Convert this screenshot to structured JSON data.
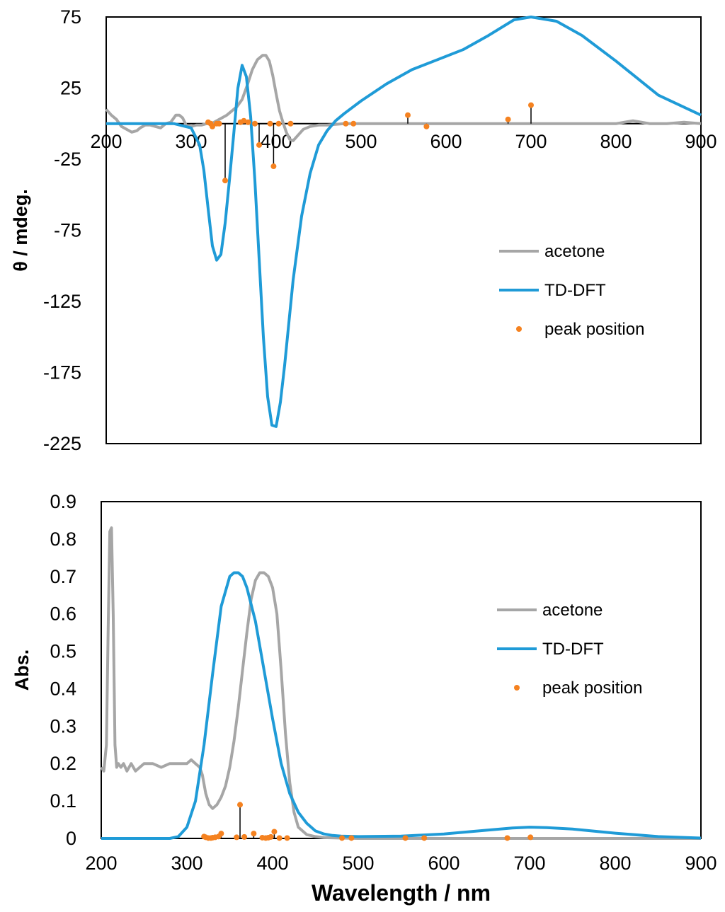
{
  "chart_data": [
    {
      "type": "line",
      "panel": "top",
      "title": "",
      "xlabel": "",
      "ylabel": "θ / mdeg.",
      "xlim": [
        200,
        900
      ],
      "ylim": [
        -225,
        75
      ],
      "xticks": [
        "200",
        "300",
        "400",
        "500",
        "600",
        "700",
        "800",
        "900"
      ],
      "yticks": [
        "75",
        "25",
        "-25",
        "-75",
        "-125",
        "-175",
        "-225"
      ],
      "legend": {
        "position": "right-middle",
        "entries": [
          "acetone",
          "TD-DFT",
          "peak position"
        ]
      },
      "series": [
        {
          "name": "acetone",
          "color": "#a6a6a6",
          "x": [
            200,
            206,
            212,
            218,
            224,
            230,
            236,
            240,
            246,
            252,
            258,
            264,
            270,
            276,
            282,
            286,
            290,
            294,
            300,
            306,
            312,
            318,
            324,
            330,
            336,
            342,
            348,
            354,
            360,
            366,
            372,
            378,
            384,
            388,
            392,
            396,
            400,
            404,
            408,
            412,
            416,
            420,
            426,
            432,
            440,
            450,
            460,
            480,
            500,
            550,
            600,
            650,
            700,
            750,
            800,
            810,
            820,
            830,
            840,
            860,
            880,
            900
          ],
          "y": [
            10,
            6,
            3,
            -2,
            -4,
            -6,
            -5,
            -3,
            -1,
            -1,
            -2,
            -3,
            0,
            1,
            6,
            6,
            4,
            -1,
            -2,
            -1,
            -1,
            0,
            0,
            2,
            4,
            6,
            9,
            12,
            17,
            27,
            38,
            45,
            48,
            48,
            44,
            34,
            21,
            9,
            1,
            -6,
            -11,
            -12,
            -8,
            -4,
            -2,
            -1,
            -1,
            0,
            0,
            0,
            0,
            0,
            0,
            0,
            0,
            1,
            2,
            1,
            0,
            0,
            1,
            0
          ]
        },
        {
          "name": "TD-DFT",
          "color": "#1f9bd7",
          "x": [
            200,
            280,
            300,
            310,
            315,
            320,
            325,
            330,
            335,
            340,
            345,
            350,
            355,
            360,
            365,
            370,
            375,
            380,
            385,
            390,
            395,
            400,
            405,
            410,
            415,
            420,
            430,
            440,
            450,
            460,
            470,
            480,
            500,
            530,
            560,
            590,
            620,
            650,
            680,
            700,
            730,
            760,
            800,
            850,
            900
          ],
          "y": [
            0,
            0,
            -3,
            -15,
            -33,
            -60,
            -86,
            -96,
            -92,
            -70,
            -40,
            -8,
            25,
            41,
            33,
            5,
            -40,
            -95,
            -150,
            -192,
            -212,
            -213,
            -196,
            -170,
            -140,
            -110,
            -65,
            -35,
            -15,
            -5,
            2,
            7,
            16,
            28,
            38,
            45,
            52,
            62,
            73,
            75,
            72,
            62,
            44,
            20,
            6
          ]
        },
        {
          "name": "peak position",
          "color": "#f58220",
          "x": [
            320,
            323,
            325,
            330,
            333,
            340,
            358,
            362,
            367,
            375,
            380,
            393,
            397,
            403,
            417,
            482,
            491,
            555,
            577,
            673,
            700
          ],
          "y": [
            1,
            0,
            -2,
            0,
            0,
            -40,
            1,
            2,
            1,
            0,
            -15,
            0,
            -30,
            0,
            0,
            0,
            0,
            6,
            -2,
            3,
            13
          ]
        }
      ]
    },
    {
      "type": "line",
      "panel": "bottom",
      "title": "",
      "xlabel": "Wavelength / nm",
      "ylabel": "Abs.",
      "xlim": [
        200,
        900
      ],
      "ylim": [
        0,
        0.9
      ],
      "xticks": [
        "200",
        "300",
        "400",
        "500",
        "600",
        "700",
        "800",
        "900"
      ],
      "yticks": [
        "0.9",
        "0.8",
        "0.7",
        "0.6",
        "0.5",
        "0.4",
        "0.3",
        "0.2",
        "0.1",
        "0"
      ],
      "legend": {
        "position": "right-middle",
        "entries": [
          "acetone",
          "TD-DFT",
          "peak position"
        ]
      },
      "series": [
        {
          "name": "acetone",
          "color": "#a6a6a6",
          "x": [
            200,
            203,
            206,
            208,
            210,
            212,
            214,
            216,
            218,
            220,
            223,
            226,
            230,
            235,
            240,
            245,
            250,
            260,
            270,
            280,
            290,
            300,
            305,
            310,
            315,
            318,
            322,
            326,
            330,
            335,
            340,
            345,
            350,
            355,
            360,
            365,
            370,
            375,
            380,
            385,
            390,
            395,
            400,
            405,
            410,
            415,
            420,
            425,
            430,
            440,
            450,
            460,
            480,
            500,
            600,
            700,
            800,
            900
          ],
          "y": [
            0.19,
            0.18,
            0.25,
            0.55,
            0.82,
            0.83,
            0.6,
            0.25,
            0.19,
            0.2,
            0.19,
            0.2,
            0.18,
            0.2,
            0.18,
            0.19,
            0.2,
            0.2,
            0.19,
            0.2,
            0.2,
            0.2,
            0.21,
            0.2,
            0.19,
            0.17,
            0.12,
            0.09,
            0.08,
            0.09,
            0.11,
            0.14,
            0.19,
            0.26,
            0.35,
            0.45,
            0.55,
            0.64,
            0.69,
            0.71,
            0.71,
            0.7,
            0.67,
            0.6,
            0.45,
            0.28,
            0.15,
            0.07,
            0.03,
            0.01,
            0.005,
            0.002,
            0.001,
            0,
            0,
            0,
            0,
            0
          ]
        },
        {
          "name": "TD-DFT",
          "color": "#1f9bd7",
          "x": [
            200,
            260,
            280,
            290,
            300,
            310,
            320,
            330,
            340,
            350,
            355,
            360,
            365,
            370,
            380,
            390,
            400,
            410,
            420,
            430,
            440,
            450,
            460,
            470,
            480,
            500,
            550,
            600,
            650,
            680,
            700,
            720,
            750,
            800,
            850,
            900
          ],
          "y": [
            0,
            0,
            0,
            0.005,
            0.03,
            0.1,
            0.25,
            0.44,
            0.62,
            0.7,
            0.71,
            0.71,
            0.7,
            0.67,
            0.58,
            0.45,
            0.32,
            0.2,
            0.12,
            0.07,
            0.04,
            0.02,
            0.012,
            0.008,
            0.006,
            0.005,
            0.006,
            0.012,
            0.022,
            0.028,
            0.03,
            0.029,
            0.025,
            0.014,
            0.005,
            0.001
          ]
        },
        {
          "name": "peak position",
          "color": "#f58220",
          "x": [
            320,
            322,
            325,
            328,
            330,
            333,
            337,
            340,
            358,
            362,
            367,
            378,
            388,
            392,
            395,
            398,
            402,
            408,
            417,
            481,
            492,
            555,
            577,
            674,
            701
          ],
          "y": [
            0.005,
            0.003,
            0.001,
            0.001,
            0.002,
            0.003,
            0.005,
            0.013,
            0.003,
            0.09,
            0.004,
            0.013,
            0.002,
            0.001,
            0.002,
            0.004,
            0.018,
            0.001,
            0.001,
            0.001,
            0.001,
            0.001,
            0.001,
            0.001,
            0.003
          ]
        }
      ]
    }
  ]
}
